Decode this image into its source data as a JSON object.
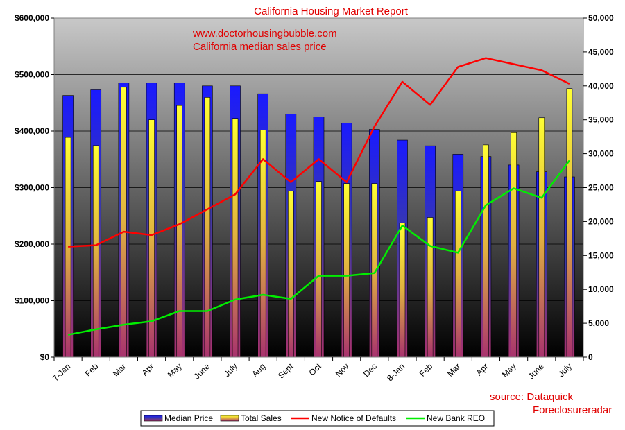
{
  "chart_data": {
    "type": "bar",
    "title": "California Housing Market Report",
    "annotation_lines": [
      "www.doctorhousingbubble.com",
      "California median sales price"
    ],
    "source_lines": [
      "source:  Dataquick",
      "Foreclosureradar"
    ],
    "categories": [
      "7-Jan",
      "Feb",
      "Mar",
      "Apr",
      "May",
      "June",
      "July",
      "Aug",
      "Sept",
      "Oct",
      "Nov",
      "Dec",
      "8-Jan",
      "Feb",
      "Mar",
      "Apr",
      "May",
      "June",
      "July"
    ],
    "y_left_ticks": [
      "$0",
      "$100,000",
      "$200,000",
      "$300,000",
      "$400,000",
      "$500,000",
      "$600,000"
    ],
    "y_right_ticks": [
      "0",
      "5,000",
      "10,000",
      "15,000",
      "20,000",
      "25,000",
      "30,000",
      "35,000",
      "40,000",
      "45,000",
      "50,000"
    ],
    "ylim_left": [
      0,
      600000
    ],
    "ylim_right": [
      0,
      50000
    ],
    "grid": true,
    "legend_position": "bottom",
    "series": [
      {
        "name": "Median Price",
        "kind": "bar",
        "axis": "left",
        "color": "#1a1aff",
        "values": [
          463000,
          473000,
          485000,
          485000,
          485000,
          480000,
          480000,
          466000,
          430000,
          425000,
          414000,
          403000,
          384000,
          374000,
          359000,
          355000,
          340000,
          328000,
          319000
        ]
      },
      {
        "name": "Total Sales",
        "kind": "bar",
        "axis": "right",
        "color": "#ffff33",
        "values": [
          32400,
          31200,
          39800,
          35000,
          37100,
          38300,
          35200,
          33500,
          24500,
          25900,
          25600,
          25600,
          19800,
          20600,
          24500,
          31300,
          33100,
          35300,
          39600
        ]
      },
      {
        "name": "New Notice of Defaults",
        "kind": "line",
        "axis": "right",
        "color": "#ff0000",
        "values": [
          16300,
          16500,
          18500,
          18000,
          19600,
          21800,
          24000,
          29200,
          25800,
          29200,
          25800,
          34000,
          40600,
          37200,
          42800,
          44100,
          43200,
          42300,
          40300
        ]
      },
      {
        "name": "New Bank REO",
        "kind": "line",
        "axis": "right",
        "color": "#00ee00",
        "values": [
          3300,
          4100,
          4800,
          5300,
          6800,
          6800,
          8500,
          9200,
          8600,
          12000,
          12000,
          12400,
          19400,
          16400,
          15400,
          22400,
          24900,
          23500,
          29000
        ]
      }
    ]
  }
}
